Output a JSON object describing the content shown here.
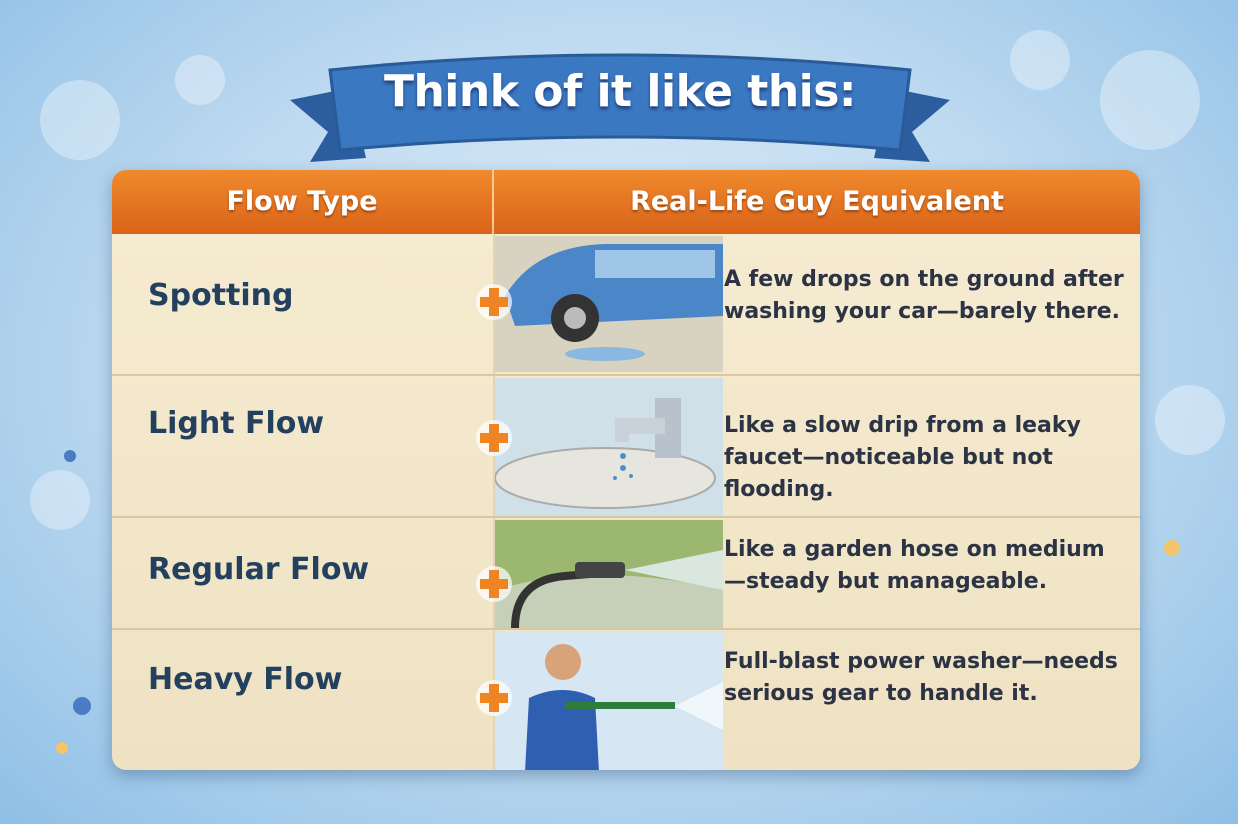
{
  "title": "Think of it like this:",
  "table": {
    "headers": [
      "Flow Type",
      "Real-Life Guy Equivalent"
    ],
    "rows": [
      [
        "Spotting",
        "A few drops on the ground after washing your car—barely there."
      ],
      [
        "Light Flow",
        "Like a slow drip from a leaky faucet—noticeable but not flooding."
      ],
      [
        "Regular Flow",
        "Like a garden hose on medium—steady but manageable."
      ],
      [
        "Heavy Flow",
        "Full-blast power washer—needs serious gear to handle it."
      ]
    ]
  }
}
